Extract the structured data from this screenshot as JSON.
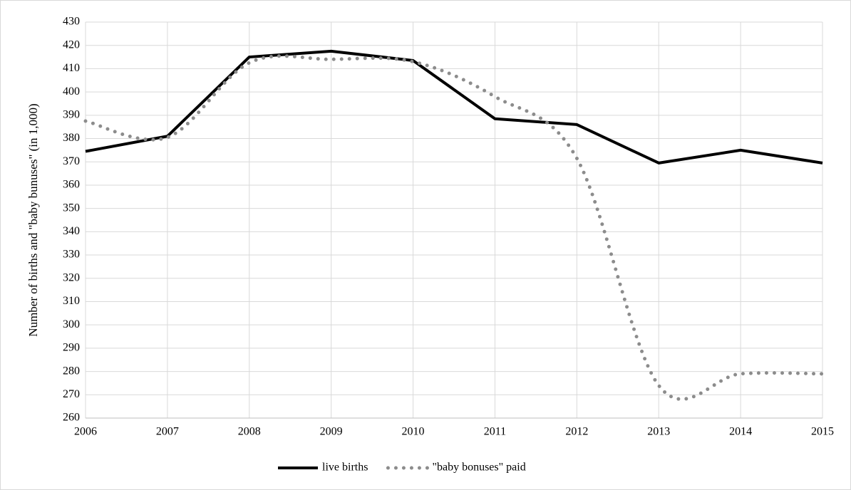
{
  "chart_data": {
    "type": "line",
    "y_label": "Number of births and \"baby bunuses\" (in 1,000)",
    "x": [
      2006,
      2007,
      2008,
      2009,
      2010,
      2011,
      2012,
      2013,
      2014,
      2015
    ],
    "series": [
      {
        "name": "live births",
        "color": "#000000",
        "dash": "solid",
        "smooth": false,
        "values": [
          374.5,
          381,
          415,
          417.5,
          413.5,
          388.5,
          386,
          369.5,
          375,
          369.5
        ]
      },
      {
        "name": "\"baby bonuses\" paid",
        "color": "#8c8c8c",
        "dash": "dotted",
        "smooth": true,
        "values": [
          387.5,
          380.5,
          412.5,
          414,
          413,
          398,
          371.5,
          274,
          279,
          279
        ]
      }
    ],
    "xlim": [
      2006,
      2015
    ],
    "xticks": [
      2006,
      2007,
      2008,
      2009,
      2010,
      2011,
      2012,
      2013,
      2014,
      2015
    ],
    "ylim": [
      260,
      430
    ],
    "yticks": [
      260,
      270,
      280,
      290,
      300,
      310,
      320,
      330,
      340,
      350,
      360,
      370,
      380,
      390,
      400,
      410,
      420,
      430
    ],
    "grid": true,
    "legend": "bottom"
  }
}
